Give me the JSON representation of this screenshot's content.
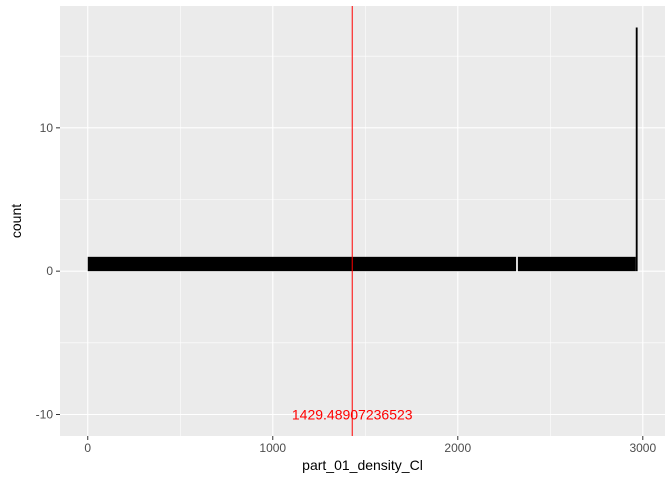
{
  "chart_data": {
    "type": "bar",
    "subtype": "histogram",
    "title": "",
    "xlabel": "part_01_density_Cl",
    "ylabel": "count",
    "xlim": [
      -150,
      3120
    ],
    "ylim": [
      -11.5,
      18.5
    ],
    "x_ticks": [
      0,
      1000,
      2000,
      3000
    ],
    "x_tick_labels": [
      "0",
      "1000",
      "2000",
      "3000"
    ],
    "y_ticks": [
      -10,
      0,
      10
    ],
    "y_tick_labels": [
      "-10",
      "0",
      "10"
    ],
    "grid": true,
    "background": "#EBEBEB",
    "grid_color": "#FFFFFF",
    "bar_color": "#000000",
    "bins": [
      {
        "x0": 0,
        "x1": 2315,
        "count": 1
      },
      {
        "x0": 2325,
        "x1": 2962,
        "count": 1
      },
      {
        "x0": 2962,
        "x1": 2972,
        "count": 17
      }
    ],
    "vline": {
      "x": 1429.48907236523,
      "color": "#FF0000",
      "label": "1429.48907236523",
      "label_y": -10
    }
  }
}
